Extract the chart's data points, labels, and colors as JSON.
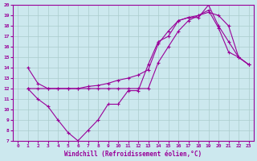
{
  "xlabel": "Windchill (Refroidissement éolien,°C)",
  "bg_color": "#cce8ee",
  "line_color": "#990099",
  "grid_color": "#aacccc",
  "xlim": [
    -0.5,
    23.5
  ],
  "ylim": [
    7,
    20
  ],
  "xticks": [
    0,
    1,
    2,
    3,
    4,
    5,
    6,
    7,
    8,
    9,
    10,
    11,
    12,
    13,
    14,
    15,
    16,
    17,
    18,
    19,
    20,
    21,
    22,
    23
  ],
  "yticks": [
    7,
    8,
    9,
    10,
    11,
    12,
    13,
    14,
    15,
    16,
    17,
    18,
    19,
    20
  ],
  "series": [
    {
      "x": [
        1,
        2,
        3,
        4,
        5,
        6,
        7,
        8,
        9,
        10,
        11,
        12,
        13,
        14,
        15,
        16,
        17,
        18,
        19,
        20,
        21,
        22,
        23
      ],
      "y": [
        12.0,
        11.0,
        10.3,
        9.0,
        7.8,
        7.0,
        8.0,
        9.0,
        10.5,
        10.5,
        11.8,
        11.8,
        14.3,
        16.5,
        17.0,
        18.5,
        18.8,
        18.8,
        20.0,
        18.0,
        16.5,
        15.0,
        14.3
      ]
    },
    {
      "x": [
        1,
        2,
        3,
        4,
        5,
        6,
        7,
        8,
        9,
        10,
        11,
        12,
        13,
        14,
        15,
        16,
        17,
        18,
        19,
        20,
        21,
        22,
        23
      ],
      "y": [
        12.0,
        12.0,
        12.0,
        12.0,
        12.0,
        12.0,
        12.2,
        12.3,
        12.5,
        12.8,
        13.0,
        13.3,
        13.8,
        16.3,
        17.5,
        18.5,
        18.8,
        19.0,
        19.5,
        17.8,
        15.5,
        15.0,
        14.3
      ]
    },
    {
      "x": [
        1,
        2,
        3,
        4,
        5,
        6,
        7,
        8,
        9,
        10,
        11,
        12,
        13,
        14,
        15,
        16,
        17,
        18,
        19,
        20,
        21,
        22,
        23
      ],
      "y": [
        14.0,
        12.5,
        12.0,
        12.0,
        12.0,
        12.0,
        12.0,
        12.0,
        12.0,
        12.0,
        12.0,
        12.0,
        12.0,
        14.5,
        16.0,
        17.5,
        18.5,
        19.0,
        19.3,
        19.0,
        18.0,
        15.0,
        14.3
      ]
    }
  ]
}
